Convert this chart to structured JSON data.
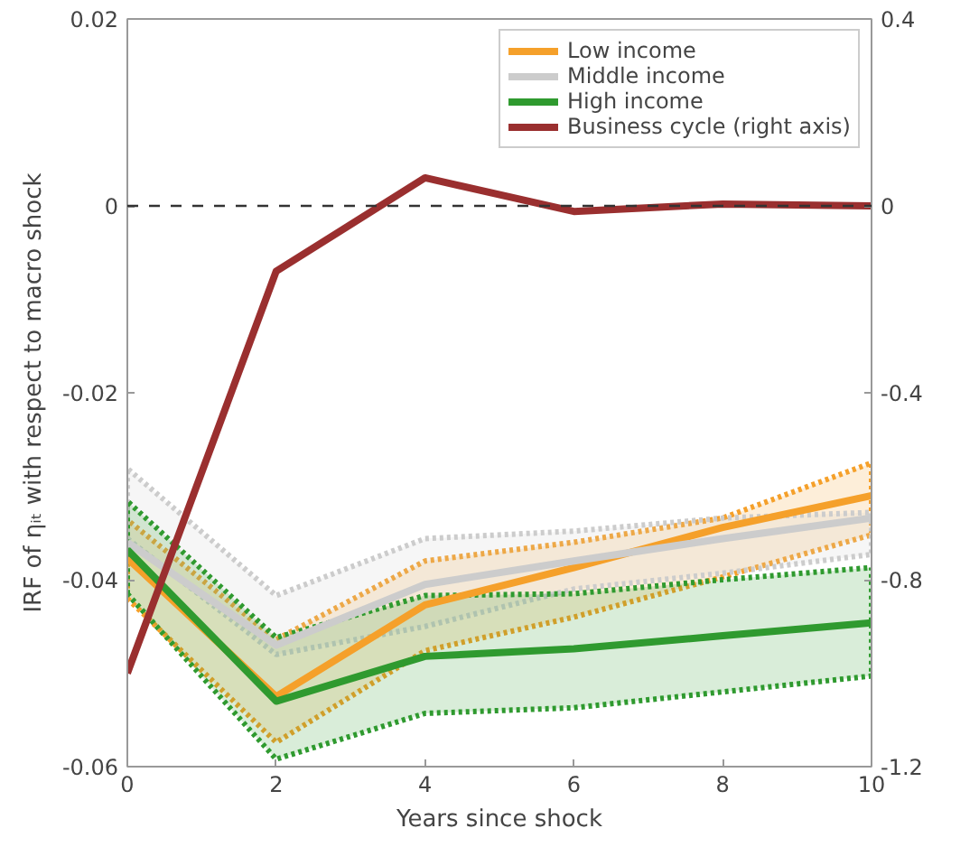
{
  "chart_data": {
    "type": "line",
    "xlabel": "Years since shock",
    "ylabel": "IRF of ηᵢₜ with respect to macro shock",
    "x": [
      0,
      2,
      4,
      6,
      8,
      10
    ],
    "xlim": [
      0,
      10
    ],
    "xticks": [
      0,
      2,
      4,
      6,
      8,
      10
    ],
    "ylim": [
      -0.06,
      0.02
    ],
    "yticks": [
      -0.06,
      -0.04,
      -0.02,
      0,
      0.02
    ],
    "y2lim": [
      -1.2,
      0.4
    ],
    "y2ticks": [
      -1.2,
      -0.8,
      -0.4,
      0,
      0.4
    ],
    "grid": false,
    "legend": "top right",
    "line_style": "solid",
    "marker": "none",
    "ref_lines": [
      {
        "axis": "y",
        "value": 0,
        "color": "#333333",
        "line_style": "dashed"
      }
    ],
    "series": [
      {
        "name": "Low income",
        "color": "#f5a02a",
        "values": [
          -0.0377,
          -0.0525,
          -0.0427,
          -0.0387,
          -0.0344,
          -0.031
        ],
        "lower": [
          -0.042,
          -0.0574,
          -0.0476,
          -0.044,
          -0.0397,
          -0.0352
        ],
        "upper": [
          -0.0336,
          -0.0464,
          -0.038,
          -0.036,
          -0.0334,
          -0.0275
        ]
      },
      {
        "name": "Middle income",
        "color": "#cccccc",
        "values": [
          -0.036,
          -0.047,
          -0.0405,
          -0.038,
          -0.0356,
          -0.0334
        ],
        "lower": [
          -0.0356,
          -0.048,
          -0.045,
          -0.041,
          -0.0393,
          -0.0373
        ],
        "upper": [
          -0.0281,
          -0.0417,
          -0.0356,
          -0.0348,
          -0.0334,
          -0.0328
        ]
      },
      {
        "name": "High income",
        "color": "#2f9a2f",
        "values": [
          -0.0368,
          -0.053,
          -0.0482,
          -0.0474,
          -0.046,
          -0.0446
        ],
        "lower": [
          -0.0415,
          -0.0592,
          -0.0543,
          -0.0537,
          -0.052,
          -0.0503
        ],
        "upper": [
          -0.0316,
          -0.0462,
          -0.0417,
          -0.0415,
          -0.04,
          -0.0387
        ]
      },
      {
        "name": "Business cycle (right axis)",
        "color": "#9a2f2f",
        "axis": "y2",
        "values": [
          -1.0,
          -0.14,
          0.06,
          -0.012,
          0.004,
          0
        ]
      }
    ]
  }
}
